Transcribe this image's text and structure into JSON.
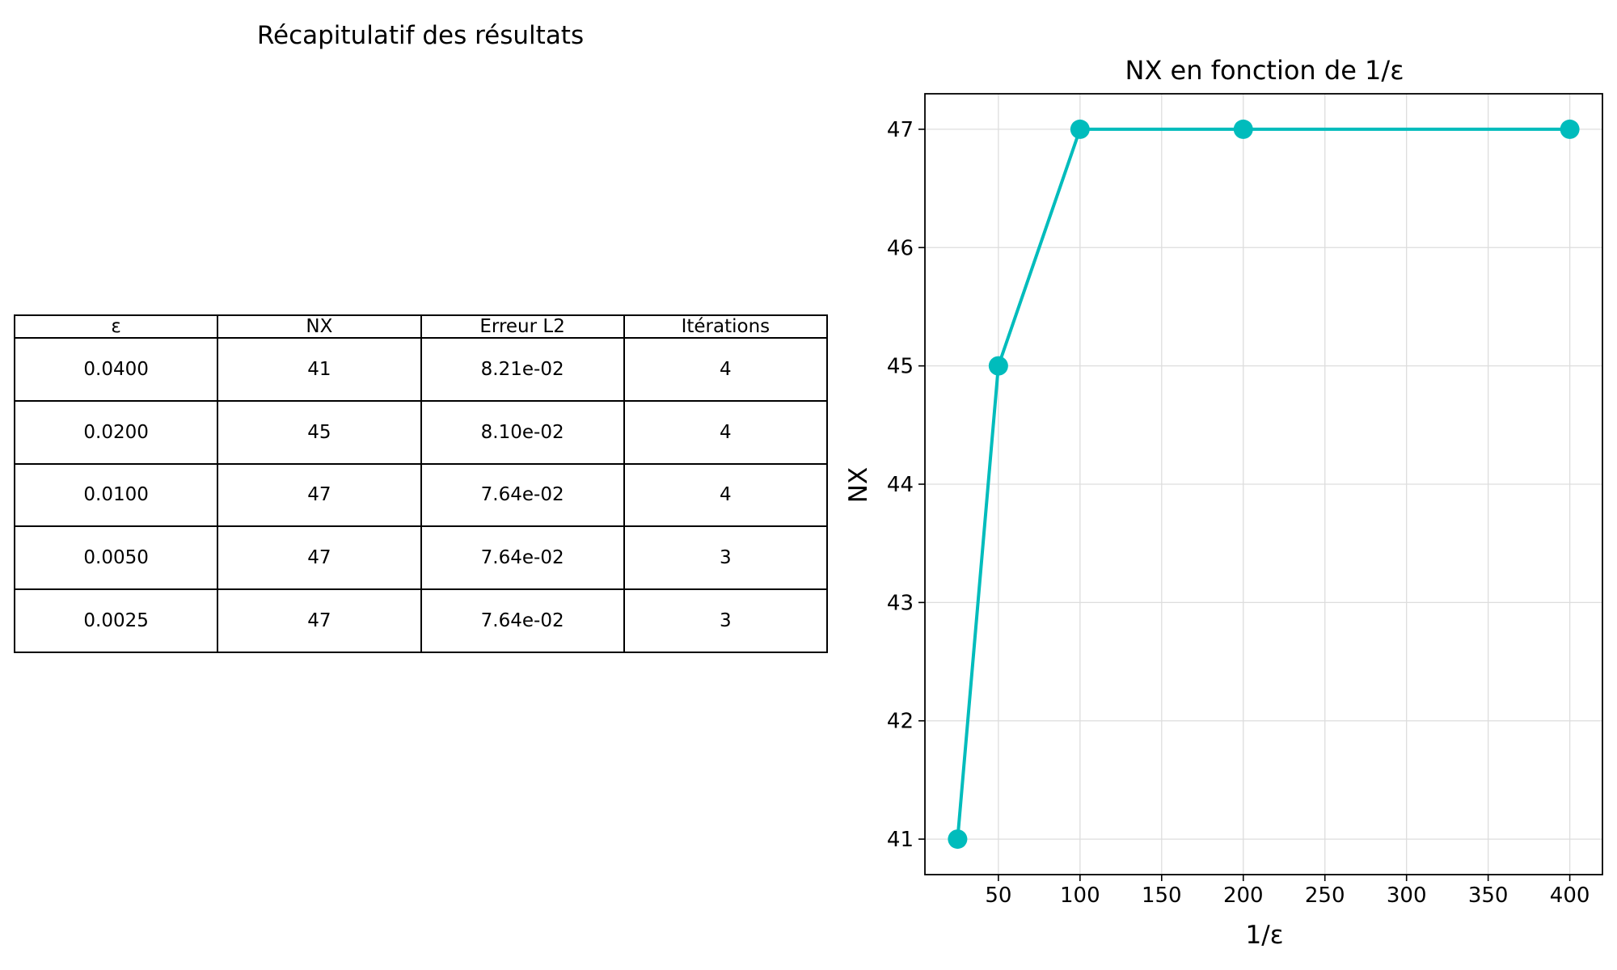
{
  "table": {
    "title": "Récapitulatif des résultats",
    "headers": [
      "ε",
      "NX",
      "Erreur L2",
      "Itérations"
    ],
    "rows": [
      [
        "0.0400",
        "41",
        "8.21e-02",
        "4"
      ],
      [
        "0.0200",
        "45",
        "8.10e-02",
        "4"
      ],
      [
        "0.0100",
        "47",
        "7.64e-02",
        "4"
      ],
      [
        "0.0050",
        "47",
        "7.64e-02",
        "3"
      ],
      [
        "0.0025",
        "47",
        "7.64e-02",
        "3"
      ]
    ]
  },
  "chart_data": {
    "type": "line",
    "title": "NX en fonction de 1/ε",
    "xlabel": "1/ε",
    "ylabel": "NX",
    "x": [
      25,
      50,
      100,
      200,
      400
    ],
    "series": [
      {
        "values": [
          41,
          45,
          47,
          47,
          47
        ],
        "color": "#00bcbc",
        "marker": "circle"
      }
    ],
    "xlim": [
      5,
      420
    ],
    "ylim": [
      40.7,
      47.3
    ],
    "xticks": [
      50,
      100,
      150,
      200,
      250,
      300,
      350,
      400
    ],
    "yticks": [
      41,
      42,
      43,
      44,
      45,
      46,
      47
    ],
    "grid": true
  }
}
